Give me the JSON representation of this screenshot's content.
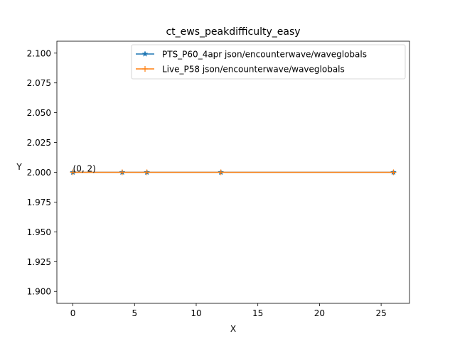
{
  "chart_data": {
    "type": "line",
    "title": "ct_ews_peakdifficulty_easy",
    "xlabel": "X",
    "ylabel": "Y",
    "xlim": [
      -1.3,
      27.3
    ],
    "ylim": [
      1.89,
      2.11
    ],
    "xticks": [
      0,
      5,
      10,
      15,
      20,
      25
    ],
    "xtick_labels": [
      "0",
      "5",
      "10",
      "15",
      "20",
      "25"
    ],
    "yticks": [
      1.9,
      1.925,
      1.95,
      1.975,
      2.0,
      2.025,
      2.05,
      2.075,
      2.1
    ],
    "ytick_labels": [
      "1.900",
      "1.925",
      "1.950",
      "1.975",
      "2.000",
      "2.025",
      "2.050",
      "2.075",
      "2.100"
    ],
    "grid": false,
    "legend_position": "upper right",
    "series": [
      {
        "name": "PTS_P60_4apr json/encounterwave/waveglobals",
        "color": "#1f77b4",
        "marker": "star",
        "x": [
          0,
          4,
          6,
          12,
          26
        ],
        "y": [
          2,
          2,
          2,
          2,
          2
        ]
      },
      {
        "name": "Live_P58 json/encounterwave/waveglobals",
        "color": "#ff7f0e",
        "marker": "plus",
        "x": [
          0,
          4,
          6,
          12,
          26
        ],
        "y": [
          2,
          2,
          2,
          2,
          2
        ]
      }
    ],
    "annotations": [
      {
        "text": "(0, 2)",
        "x": 0,
        "y": 2
      }
    ]
  }
}
